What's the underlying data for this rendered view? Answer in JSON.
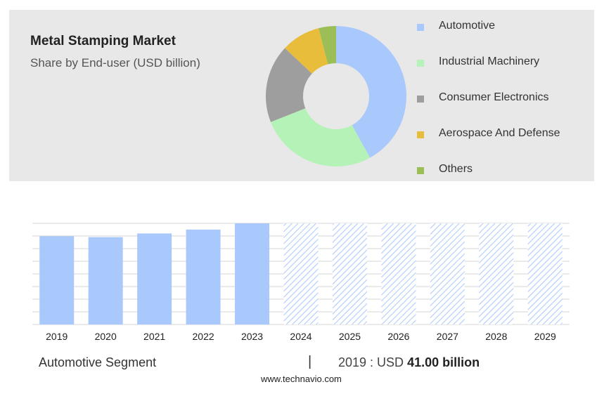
{
  "chart_data": [
    {
      "type": "pie",
      "title": "Metal Stamping Market",
      "subtitle": "Share by End-user (USD billion)",
      "donut": true,
      "legend_position": "right",
      "slices": [
        {
          "label": "Automotive",
          "value": 42,
          "color": "#a9c8fb"
        },
        {
          "label": "Industrial Machinery",
          "value": 27,
          "color": "#b4f2b7"
        },
        {
          "label": "Consumer Electronics",
          "value": 18,
          "color": "#9e9e9e"
        },
        {
          "label": "Aerospace And Defense",
          "value": 9,
          "color": "#e8bd3c"
        },
        {
          "label": "Others",
          "value": 4,
          "color": "#9bbf56"
        }
      ]
    },
    {
      "type": "bar",
      "categories": [
        "2019",
        "2020",
        "2021",
        "2022",
        "2023",
        "2024",
        "2025",
        "2026",
        "2027",
        "2028",
        "2029"
      ],
      "values": [
        41.0,
        40.6,
        42.3,
        44.1,
        47.0,
        null,
        null,
        null,
        null,
        null,
        null
      ],
      "forecast_categories": [
        "2024",
        "2025",
        "2026",
        "2027",
        "2028",
        "2029"
      ],
      "ylim": [
        0,
        47
      ],
      "grid": true,
      "bar_color": "#a9c8fb",
      "forecast_color": "#a9c8fb"
    }
  ],
  "footer": {
    "segment": "Automotive Segment",
    "separator": "|",
    "value_prefix": "2019 : USD",
    "value_bold": "41.00 billion"
  },
  "source": "www.technavio.com"
}
